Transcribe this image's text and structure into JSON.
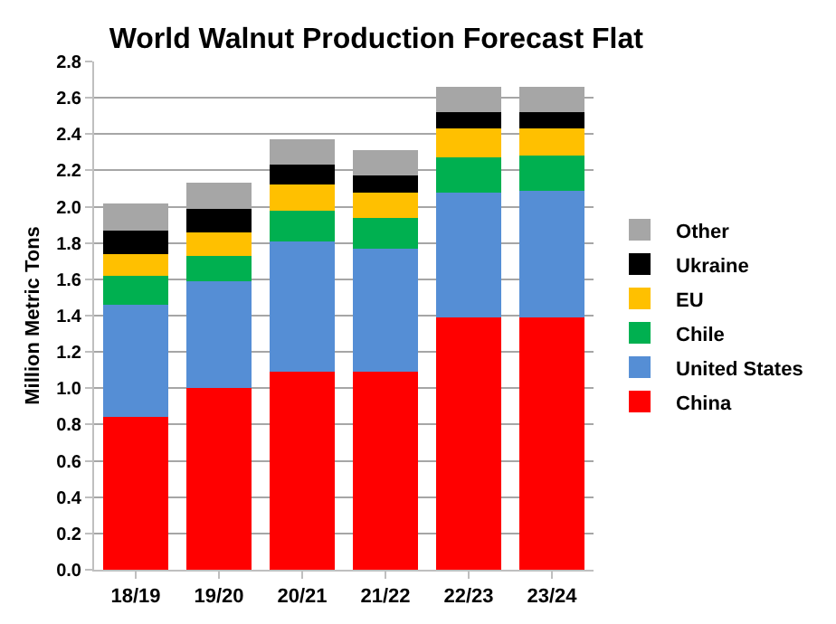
{
  "chart_data": {
    "type": "bar",
    "title": "World Walnut Production Forecast Flat",
    "ylabel": "Million Metric Tons",
    "stacked": true,
    "categories": [
      "18/19",
      "19/20",
      "20/21",
      "21/22",
      "22/23",
      "23/24"
    ],
    "series": [
      {
        "name": "China",
        "color": "#ff0000",
        "values": [
          0.84,
          1.0,
          1.09,
          1.09,
          1.39,
          1.39
        ]
      },
      {
        "name": "United States",
        "color": "#558ed5",
        "values": [
          0.62,
          0.59,
          0.72,
          0.68,
          0.69,
          0.7
        ]
      },
      {
        "name": "Chile",
        "color": "#00b050",
        "values": [
          0.16,
          0.14,
          0.17,
          0.17,
          0.19,
          0.19
        ]
      },
      {
        "name": "EU",
        "color": "#ffc000",
        "values": [
          0.12,
          0.13,
          0.14,
          0.14,
          0.16,
          0.15
        ]
      },
      {
        "name": "Ukraine",
        "color": "#000000",
        "values": [
          0.13,
          0.13,
          0.11,
          0.09,
          0.09,
          0.09
        ]
      },
      {
        "name": "Other",
        "color": "#a6a6a6",
        "values": [
          0.15,
          0.14,
          0.14,
          0.14,
          0.14,
          0.14
        ]
      }
    ],
    "ylim": [
      0,
      2.8
    ],
    "yticks": [
      {
        "value": 0,
        "label": "0.0"
      },
      0.2,
      0.4,
      0.6,
      0.8,
      {
        "value": 1,
        "label": "1.0"
      },
      1.2,
      1.4,
      1.6,
      1.8,
      {
        "value": 2,
        "label": "2.0"
      },
      2.2,
      2.4,
      2.6,
      2.8
    ],
    "grid": "y",
    "legend": "right"
  }
}
